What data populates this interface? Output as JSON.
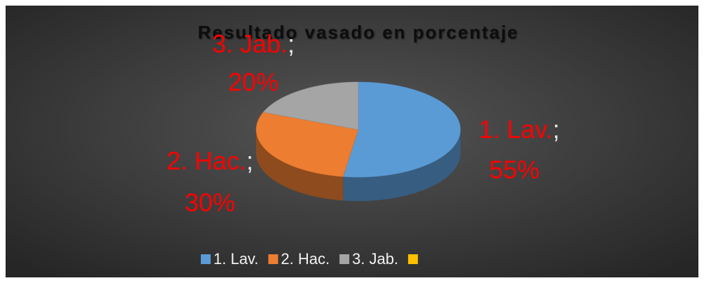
{
  "chart_data": {
    "type": "pie",
    "title": "Resultado vasado en porcentaje",
    "categories": [
      "1. Lav.",
      "2. Hac.",
      "3. Jab.",
      null
    ],
    "values": [
      55,
      30,
      20,
      null
    ],
    "value_labels": [
      "55%",
      "30%",
      "20%",
      null
    ],
    "label_separator": ";",
    "colors": [
      "#5b9bd5",
      "#ed7d31",
      "#a5a5a5",
      "#ffc000"
    ],
    "legend": "bottom"
  }
}
